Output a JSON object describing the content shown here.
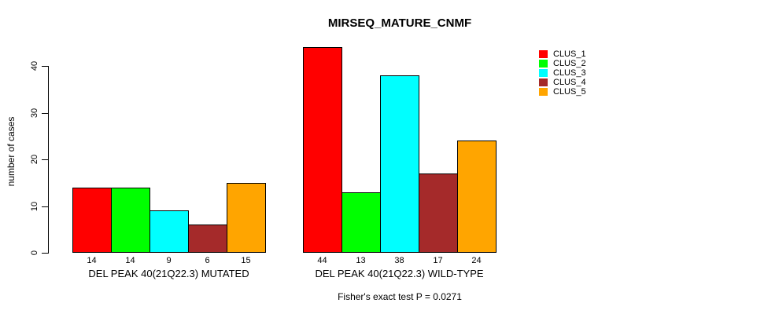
{
  "chart_data": {
    "type": "bar",
    "title": "MIRSEQ_MATURE_CNMF",
    "ylabel": "number of cases",
    "footnote": "Fisher's exact test P = 0.0271",
    "ylim": [
      0,
      44
    ],
    "yticks": [
      0,
      10,
      20,
      30,
      40
    ],
    "grid": false,
    "legend_position": "right",
    "legend": [
      "CLUS_1",
      "CLUS_2",
      "CLUS_3",
      "CLUS_4",
      "CLUS_5"
    ],
    "colors": [
      "#FF0000",
      "#00FF00",
      "#00FFFF",
      "#A52A2A",
      "#FFA500"
    ],
    "categories": [
      "DEL PEAK 40(21Q22.3) MUTATED",
      "DEL PEAK 40(21Q22.3) WILD-TYPE"
    ],
    "groups": [
      {
        "label": "DEL PEAK 40(21Q22.3) MUTATED",
        "values": [
          14,
          14,
          9,
          6,
          15
        ]
      },
      {
        "label": "DEL PEAK 40(21Q22.3) WILD-TYPE",
        "values": [
          44,
          13,
          38,
          17,
          24
        ]
      }
    ]
  }
}
